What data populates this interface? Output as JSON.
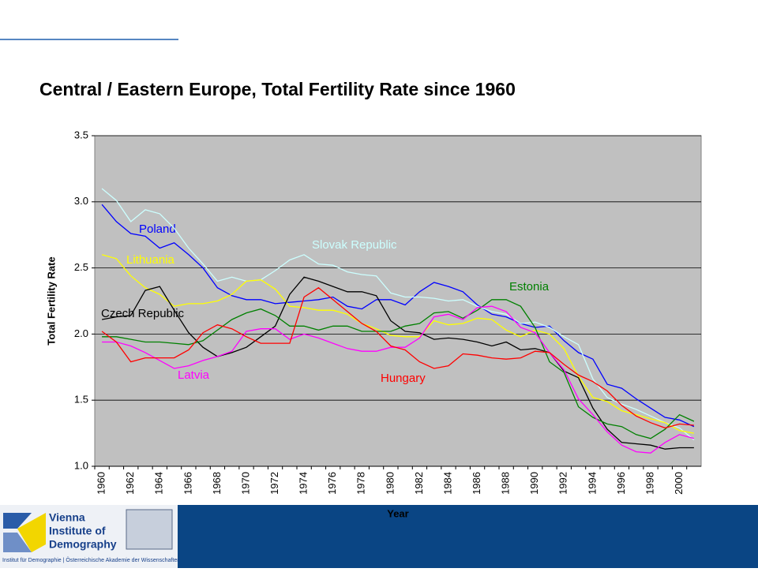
{
  "chart_data": {
    "type": "line",
    "title": "Central / Eastern Europe, Total Fertility Rate since 1960",
    "x_label": "Year",
    "y_label": "Total Fertility Rate",
    "categories": [
      "1960",
      null,
      "1962",
      null,
      "1964",
      null,
      "1966",
      null,
      "1968",
      null,
      "1970",
      null,
      "1972",
      null,
      "1974",
      null,
      "1976",
      null,
      "1978",
      null,
      "1980",
      null,
      "1982",
      null,
      "1984",
      null,
      "1986",
      null,
      "1988",
      null,
      "1990",
      null,
      "1992",
      null,
      "1994",
      null,
      "1996",
      null,
      "1998",
      null,
      "2000",
      null
    ],
    "ylim": [
      1.0,
      3.5
    ],
    "yticks": [
      {
        "value": 1.0,
        "label": "1.0"
      },
      1.5,
      {
        "value": 2.0,
        "label": "2.0"
      },
      2.5,
      {
        "value": 3.0,
        "label": "3.0"
      },
      3.5
    ],
    "grid": true,
    "series": [
      {
        "name": "Poland",
        "color": "#0000ff",
        "values": [
          2.98,
          2.85,
          2.76,
          2.74,
          2.65,
          2.69,
          2.6,
          2.5,
          2.35,
          2.29,
          2.26,
          2.26,
          2.23,
          2.24,
          2.25,
          2.26,
          2.28,
          2.21,
          2.19,
          2.26,
          2.26,
          2.22,
          2.32,
          2.39,
          2.36,
          2.32,
          2.22,
          2.15,
          2.13,
          2.08,
          2.05,
          2.06,
          1.95,
          1.86,
          1.81,
          1.62,
          1.59,
          1.51,
          1.44,
          1.37,
          1.35,
          1.3
        ]
      },
      {
        "name": "Slovak Republic",
        "color": "#ccffff",
        "values": [
          3.1,
          3.01,
          2.85,
          2.94,
          2.91,
          2.8,
          2.65,
          2.53,
          2.4,
          2.43,
          2.4,
          2.41,
          2.48,
          2.56,
          2.6,
          2.53,
          2.52,
          2.47,
          2.45,
          2.44,
          2.31,
          2.28,
          2.28,
          2.27,
          2.25,
          2.26,
          2.21,
          2.17,
          2.15,
          2.08,
          2.09,
          2.05,
          1.98,
          1.92,
          1.66,
          1.52,
          1.47,
          1.43,
          1.38,
          1.33,
          1.29,
          1.2
        ]
      },
      {
        "name": "Lithuania",
        "color": "#ffff00",
        "values": [
          2.6,
          2.57,
          2.44,
          2.35,
          2.3,
          2.21,
          2.23,
          2.23,
          2.25,
          2.3,
          2.4,
          2.41,
          2.34,
          2.21,
          2.2,
          2.18,
          2.18,
          2.15,
          2.08,
          2.04,
          1.99,
          1.98,
          1.98,
          2.1,
          2.07,
          2.08,
          2.12,
          2.11,
          2.03,
          1.98,
          2.03,
          2.0,
          1.89,
          1.68,
          1.52,
          1.49,
          1.42,
          1.39,
          1.36,
          1.33,
          1.27,
          1.25
        ]
      },
      {
        "name": "Czech Republic",
        "color": "#000000",
        "values": [
          2.11,
          2.13,
          2.14,
          2.33,
          2.36,
          2.18,
          2.01,
          1.9,
          1.83,
          1.86,
          1.9,
          1.98,
          2.06,
          2.3,
          2.43,
          2.4,
          2.36,
          2.32,
          2.32,
          2.29,
          2.1,
          2.02,
          2.01,
          1.96,
          1.97,
          1.96,
          1.94,
          1.91,
          1.94,
          1.88,
          1.89,
          1.86,
          1.72,
          1.67,
          1.44,
          1.28,
          1.18,
          1.17,
          1.16,
          1.13,
          1.14,
          1.14
        ]
      },
      {
        "name": "Estonia",
        "color": "#008000",
        "values": [
          1.98,
          1.98,
          1.96,
          1.94,
          1.94,
          1.93,
          1.92,
          1.95,
          2.03,
          2.11,
          2.16,
          2.19,
          2.14,
          2.06,
          2.06,
          2.03,
          2.06,
          2.06,
          2.02,
          2.02,
          2.02,
          2.06,
          2.08,
          2.16,
          2.17,
          2.12,
          2.18,
          2.26,
          2.26,
          2.21,
          2.05,
          1.79,
          1.71,
          1.45,
          1.37,
          1.32,
          1.3,
          1.24,
          1.21,
          1.28,
          1.39,
          1.34
        ]
      },
      {
        "name": "Latvia",
        "color": "#ff00ff",
        "values": [
          1.94,
          1.94,
          1.91,
          1.86,
          1.8,
          1.74,
          1.76,
          1.8,
          1.83,
          1.87,
          2.02,
          2.04,
          2.04,
          1.96,
          2.0,
          1.97,
          1.93,
          1.89,
          1.87,
          1.87,
          1.9,
          1.9,
          1.97,
          2.13,
          2.15,
          2.11,
          2.2,
          2.21,
          2.17,
          2.05,
          2.01,
          1.86,
          1.73,
          1.51,
          1.39,
          1.26,
          1.16,
          1.11,
          1.1,
          1.18,
          1.24,
          1.21
        ]
      },
      {
        "name": "Hungary",
        "color": "#ff0000",
        "values": [
          2.02,
          1.94,
          1.79,
          1.82,
          1.82,
          1.82,
          1.88,
          2.01,
          2.07,
          2.04,
          1.98,
          1.93,
          1.93,
          1.93,
          2.28,
          2.35,
          2.26,
          2.17,
          2.08,
          2.02,
          1.91,
          1.88,
          1.79,
          1.74,
          1.76,
          1.85,
          1.84,
          1.82,
          1.81,
          1.82,
          1.87,
          1.86,
          1.77,
          1.69,
          1.64,
          1.57,
          1.46,
          1.38,
          1.33,
          1.29,
          1.32,
          1.31
        ]
      }
    ]
  },
  "footer": {
    "logo_line_1": "Vienna",
    "logo_line_2": "Institute of",
    "logo_line_3": "Demography",
    "institution": "Institut für Demographie | Österreichische Akademie der Wissenschaften"
  }
}
